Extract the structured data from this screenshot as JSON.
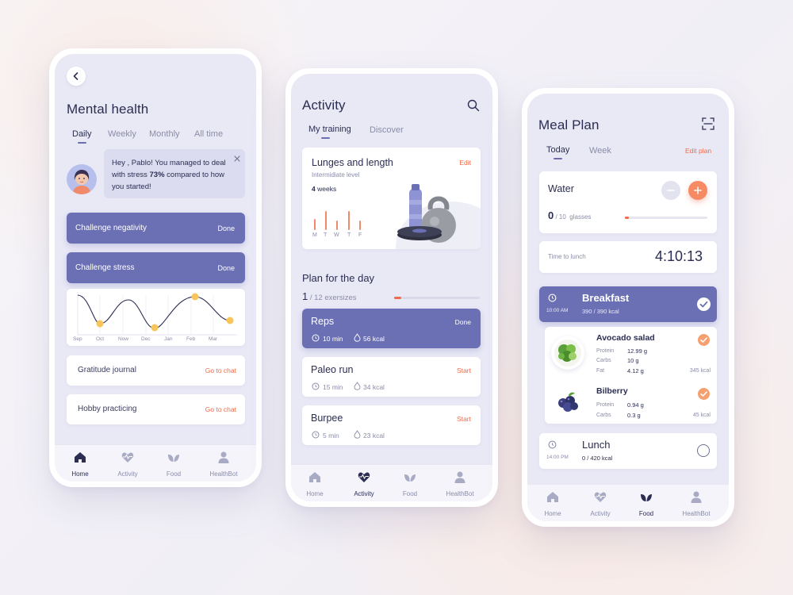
{
  "nav": [
    "Home",
    "Activity",
    "Food",
    "HealthBot"
  ],
  "mental": {
    "title": "Mental health",
    "tabs": [
      "Daily",
      "Weekly",
      "Monthly",
      "All time"
    ],
    "message_pre": "Hey , Pablo! You managed to deal with stress ",
    "message_bold": "73%",
    "message_post": " compared to how you started!",
    "challenges": [
      {
        "label": "Challenge negativity",
        "status": "Done"
      },
      {
        "label": "Challenge stress",
        "status": "Done"
      }
    ],
    "chart_months": [
      "Sep",
      "Oct",
      "Now",
      "Dec",
      "Jan",
      "Feb",
      "Mar"
    ],
    "journals": [
      {
        "label": "Gratitude journal",
        "action": "Go to chat"
      },
      {
        "label": "Hobby practicing",
        "action": "Go to chat"
      }
    ]
  },
  "activity": {
    "title": "Activity",
    "tabs": [
      "My training",
      "Discover"
    ],
    "workout": {
      "title": "Lunges and length",
      "level": "Intermidiate level",
      "weeks_num": "4",
      "weeks_label": " weeks",
      "edit": "Edit",
      "days": [
        "M",
        "T",
        "W",
        "T",
        "F"
      ]
    },
    "plan_title": "Plan for the day",
    "plan_count": "1",
    "plan_total": "/ 12 exersizes",
    "plan_progress": 0.08,
    "exercises": [
      {
        "name": "Reps",
        "action": "Done",
        "time": "10 min",
        "kcal": "56 kcal"
      },
      {
        "name": "Paleo run",
        "action": "Start",
        "time": "15 min",
        "kcal": "34 kcal"
      },
      {
        "name": "Burpee",
        "action": "Start",
        "time": "5 min",
        "kcal": "23 kcal"
      }
    ]
  },
  "meal": {
    "title": "Meal Plan",
    "tabs": [
      "Today",
      "Week"
    ],
    "edit_plan": "Edit plan",
    "water": {
      "label": "Water",
      "count": "0",
      "total": "/ 10",
      "unit": "glasses",
      "progress": 0.0
    },
    "lunch_timer": {
      "label": "Time to lunch",
      "time": "4:10:13"
    },
    "breakfast": {
      "label": "Breakfast",
      "time": "10:00 AM",
      "kcal": "390 / 390 kcal"
    },
    "foods": [
      {
        "name": "Avocado salad",
        "protein": "12.99 g",
        "carbs": "10 g",
        "fat": "4.12 g",
        "kcal": "345 kcal"
      },
      {
        "name": "Bilberry",
        "protein": "0.94 g",
        "carbs": "0.3 g",
        "kcal": "45 kcal"
      }
    ],
    "macro_labels": {
      "protein": "Protein",
      "carbs": "Carbs",
      "fat": "Fat"
    },
    "lunch": {
      "label": "Lunch",
      "time": "14:00 PM",
      "kcal": "0 / 420 kcal"
    }
  },
  "colors": {
    "accent": "#6b70b4",
    "orange": "#f06b4a",
    "bg": "#e9e9f6"
  }
}
